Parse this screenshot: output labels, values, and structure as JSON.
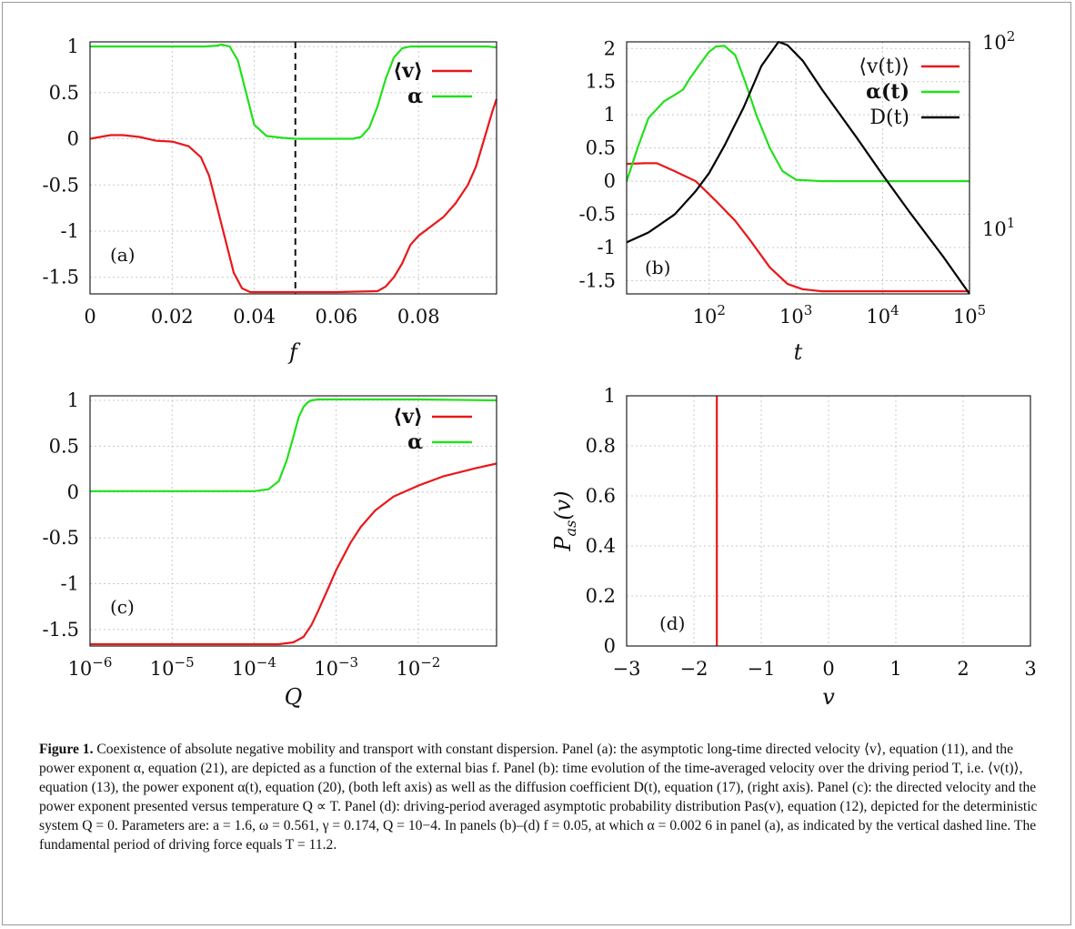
{
  "chart_data": [
    {
      "panel": "(a)",
      "type": "line",
      "xlabel": "f",
      "ylabel": "",
      "xlim": [
        0,
        0.099
      ],
      "ylim": [
        -1.68,
        1.05
      ],
      "xticks": [
        "0",
        "0.02",
        "0.04",
        "0.06",
        "0.08"
      ],
      "yticks": [
        "1",
        "0.5",
        "0",
        "-0.5",
        "-1",
        "-1.5"
      ],
      "grid": true,
      "legend_position": "top-right",
      "vline": 0.05,
      "series": [
        {
          "name": "⟨v⟩",
          "color": "#e8181b",
          "x": [
            0,
            0.005,
            0.008,
            0.012,
            0.016,
            0.02,
            0.024,
            0.027,
            0.029,
            0.031,
            0.033,
            0.035,
            0.037,
            0.039,
            0.042,
            0.05,
            0.06,
            0.07,
            0.072,
            0.074,
            0.076,
            0.078,
            0.08,
            0.083,
            0.086,
            0.089,
            0.092,
            0.094,
            0.096,
            0.098,
            0.099
          ],
          "y": [
            0,
            0.04,
            0.04,
            0.02,
            -0.02,
            -0.03,
            -0.08,
            -0.2,
            -0.4,
            -0.75,
            -1.1,
            -1.45,
            -1.62,
            -1.66,
            -1.66,
            -1.66,
            -1.66,
            -1.65,
            -1.6,
            -1.5,
            -1.35,
            -1.15,
            -1.05,
            -0.95,
            -0.85,
            -0.7,
            -0.5,
            -0.3,
            0,
            0.3,
            0.43
          ]
        },
        {
          "name": "α",
          "color": "#22e01c",
          "x": [
            0,
            0.01,
            0.02,
            0.025,
            0.028,
            0.031,
            0.032,
            0.034,
            0.036,
            0.038,
            0.04,
            0.043,
            0.047,
            0.05,
            0.055,
            0.06,
            0.064,
            0.066,
            0.068,
            0.07,
            0.072,
            0.074,
            0.076,
            0.078,
            0.08,
            0.09,
            0.097,
            0.099
          ],
          "y": [
            1,
            1,
            1,
            1,
            1,
            1.01,
            1.02,
            1,
            0.85,
            0.5,
            0.15,
            0.03,
            0.01,
            0,
            0,
            0,
            0,
            0.02,
            0.12,
            0.35,
            0.65,
            0.88,
            0.98,
            1,
            1,
            1,
            1,
            0.99
          ]
        }
      ]
    },
    {
      "panel": "(b)",
      "type": "line",
      "xlabel": "t",
      "xscale": "log",
      "xlim": [
        11.2,
        100000
      ],
      "ylim": [
        -1.7,
        2.1
      ],
      "xticks": [
        "10^2",
        "10^3",
        "10^4",
        "10^5"
      ],
      "yticks": [
        "2",
        "1.5",
        "1",
        "0.5",
        "0",
        "-0.5",
        "-1",
        "-1.5"
      ],
      "y2scale": "log",
      "y2ticks": [
        "10^2",
        "10^1"
      ],
      "grid": true,
      "legend_position": "top-right",
      "series": [
        {
          "name": "⟨v(t)⟩",
          "color": "#e8181b",
          "x": [
            11.2,
            18,
            25,
            40,
            70,
            120,
            200,
            300,
            500,
            800,
            1200,
            2000,
            5000,
            20000,
            100000
          ],
          "y": [
            0.26,
            0.27,
            0.27,
            0.15,
            0,
            -0.3,
            -0.6,
            -0.9,
            -1.3,
            -1.55,
            -1.63,
            -1.66,
            -1.66,
            -1.66,
            -1.66
          ]
        },
        {
          "name": "α(t)",
          "color": "#22e01c",
          "x": [
            11.2,
            15,
            20,
            30,
            40,
            50,
            60,
            80,
            100,
            120,
            150,
            200,
            260,
            350,
            500,
            700,
            1000,
            2000,
            5000,
            100000
          ],
          "y": [
            0,
            0.5,
            0.95,
            1.2,
            1.3,
            1.38,
            1.55,
            1.78,
            1.95,
            2.03,
            2.04,
            1.9,
            1.5,
            1.0,
            0.5,
            0.15,
            0.02,
            0,
            0,
            0
          ]
        },
        {
          "name": "D(t)",
          "color": "#000000",
          "axis": "right",
          "x": [
            11.2,
            20,
            40,
            70,
            100,
            150,
            250,
            400,
            630,
            800,
            1200,
            2000,
            5000,
            10000,
            20000,
            50000,
            100000
          ],
          "y": [
            8.5,
            9.6,
            12,
            16,
            20,
            28,
            45,
            75,
            101,
            97,
            80,
            56,
            31,
            19.5,
            12.5,
            7.1,
            4.5
          ]
        }
      ]
    },
    {
      "panel": "(c)",
      "type": "line",
      "xlabel": "Q",
      "xscale": "log",
      "xlim": [
        1e-06,
        0.09
      ],
      "ylim": [
        -1.68,
        1.05
      ],
      "xticks": [
        "10^-6",
        "10^-5",
        "10^-4",
        "10^-3",
        "10^-2"
      ],
      "yticks": [
        "1",
        "0.5",
        "0",
        "-0.5",
        "-1",
        "-1.5"
      ],
      "grid": true,
      "legend_position": "top-right",
      "series": [
        {
          "name": "⟨v⟩",
          "color": "#e8181b",
          "x": [
            1e-06,
            0.0001,
            0.0002,
            0.0003,
            0.0004,
            0.0005,
            0.0006,
            0.0008,
            0.001,
            0.0015,
            0.002,
            0.003,
            0.005,
            0.01,
            0.02,
            0.05,
            0.09
          ],
          "y": [
            -1.66,
            -1.66,
            -1.66,
            -1.64,
            -1.58,
            -1.45,
            -1.3,
            -1.05,
            -0.85,
            -0.55,
            -0.38,
            -0.2,
            -0.05,
            0.07,
            0.17,
            0.26,
            0.31
          ]
        },
        {
          "name": "α",
          "color": "#22e01c",
          "x": [
            1e-06,
            0.0001,
            0.00015,
            0.0002,
            0.00025,
            0.0003,
            0.00035,
            0.0004,
            0.00045,
            0.0005,
            0.0006,
            0.001,
            0.01,
            0.09
          ],
          "y": [
            0.01,
            0.01,
            0.03,
            0.12,
            0.35,
            0.6,
            0.82,
            0.93,
            0.98,
            1,
            1.01,
            1.01,
            1.01,
            1.0
          ]
        }
      ]
    },
    {
      "panel": "(d)",
      "type": "line",
      "xlabel": "v",
      "ylabel": "P_as(v)",
      "xlim": [
        -3,
        3
      ],
      "ylim": [
        0,
        1
      ],
      "xticks": [
        "−3",
        "−2",
        "−1",
        "0",
        "1",
        "2",
        "3"
      ],
      "yticks": [
        "1",
        "0.8",
        "0.6",
        "0.4",
        "0.2",
        "0"
      ],
      "grid": true,
      "series": [
        {
          "name": "",
          "color": "#e8181b",
          "x": [
            -1.66,
            -1.66
          ],
          "y": [
            0,
            1
          ]
        }
      ]
    }
  ],
  "panel_labels": [
    "(a)",
    "(b)",
    "(c)",
    "(d)"
  ],
  "legend": {
    "a": [
      "⟨v⟩",
      "α"
    ],
    "b": [
      "⟨v(t)⟩",
      "α(t)",
      "D(t)"
    ],
    "c": [
      "⟨v⟩",
      "α"
    ]
  },
  "axis_labels": {
    "a": "f",
    "b": "t",
    "c": "Q",
    "d_x": "v",
    "d_y": "P"
  },
  "caption": {
    "label": "Figure 1.",
    "text": " Coexistence of absolute negative mobility and transport with constant dispersion. Panel (a): the asymptotic long-time directed velocity ⟨v⟩, equation (11), and the power exponent α, equation (21), are depicted as a function of the external bias f. Panel (b): time evolution of the time-averaged velocity over the driving period T, i.e. ⟨v(t)⟩, equation (13), the power exponent α(t), equation (20), (both left axis) as well as the diffusion coefficient D(t), equation (17), (right axis). Panel (c): the directed velocity and the power exponent presented versus temperature Q ∝ T. Panel (d): driving-period averaged asymptotic probability distribution Pas(v), equation (12), depicted for the deterministic system Q = 0. Parameters are: a = 1.6, ω = 0.561, γ = 0.174, Q = 10−4. In panels (b)–(d) f = 0.05, at which α = 0.002 6 in panel (a), as indicated by the vertical dashed line. The fundamental period of driving force equals T = 11.2."
  },
  "colors": {
    "red": "#e8181b",
    "green": "#22e01c",
    "black": "#000000",
    "grid": "#c8c8c8"
  }
}
